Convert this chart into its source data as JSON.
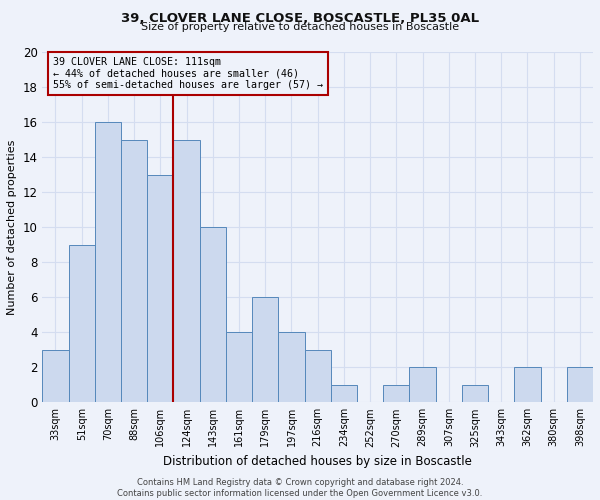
{
  "title": "39, CLOVER LANE CLOSE, BOSCASTLE, PL35 0AL",
  "subtitle": "Size of property relative to detached houses in Boscastle",
  "xlabel": "Distribution of detached houses by size in Boscastle",
  "ylabel": "Number of detached properties",
  "bar_labels": [
    "33sqm",
    "51sqm",
    "70sqm",
    "88sqm",
    "106sqm",
    "124sqm",
    "143sqm",
    "161sqm",
    "179sqm",
    "197sqm",
    "216sqm",
    "234sqm",
    "252sqm",
    "270sqm",
    "289sqm",
    "307sqm",
    "325sqm",
    "343sqm",
    "362sqm",
    "380sqm",
    "398sqm"
  ],
  "bar_values": [
    3,
    9,
    16,
    15,
    13,
    15,
    10,
    4,
    6,
    4,
    3,
    1,
    0,
    1,
    2,
    0,
    1,
    0,
    2,
    0,
    2
  ],
  "bar_color": "#ccd9ee",
  "bar_edge_color": "#5588bb",
  "ylim": [
    0,
    20
  ],
  "yticks": [
    0,
    2,
    4,
    6,
    8,
    10,
    12,
    14,
    16,
    18,
    20
  ],
  "property_line_x": 4.5,
  "annotation_line1": "39 CLOVER LANE CLOSE: 111sqm",
  "annotation_line2": "← 44% of detached houses are smaller (46)",
  "annotation_line3": "55% of semi-detached houses are larger (57) →",
  "vline_color": "#aa0000",
  "footer_line1": "Contains HM Land Registry data © Crown copyright and database right 2024.",
  "footer_line2": "Contains public sector information licensed under the Open Government Licence v3.0.",
  "background_color": "#eef2fa",
  "grid_color": "#d4ddf0"
}
